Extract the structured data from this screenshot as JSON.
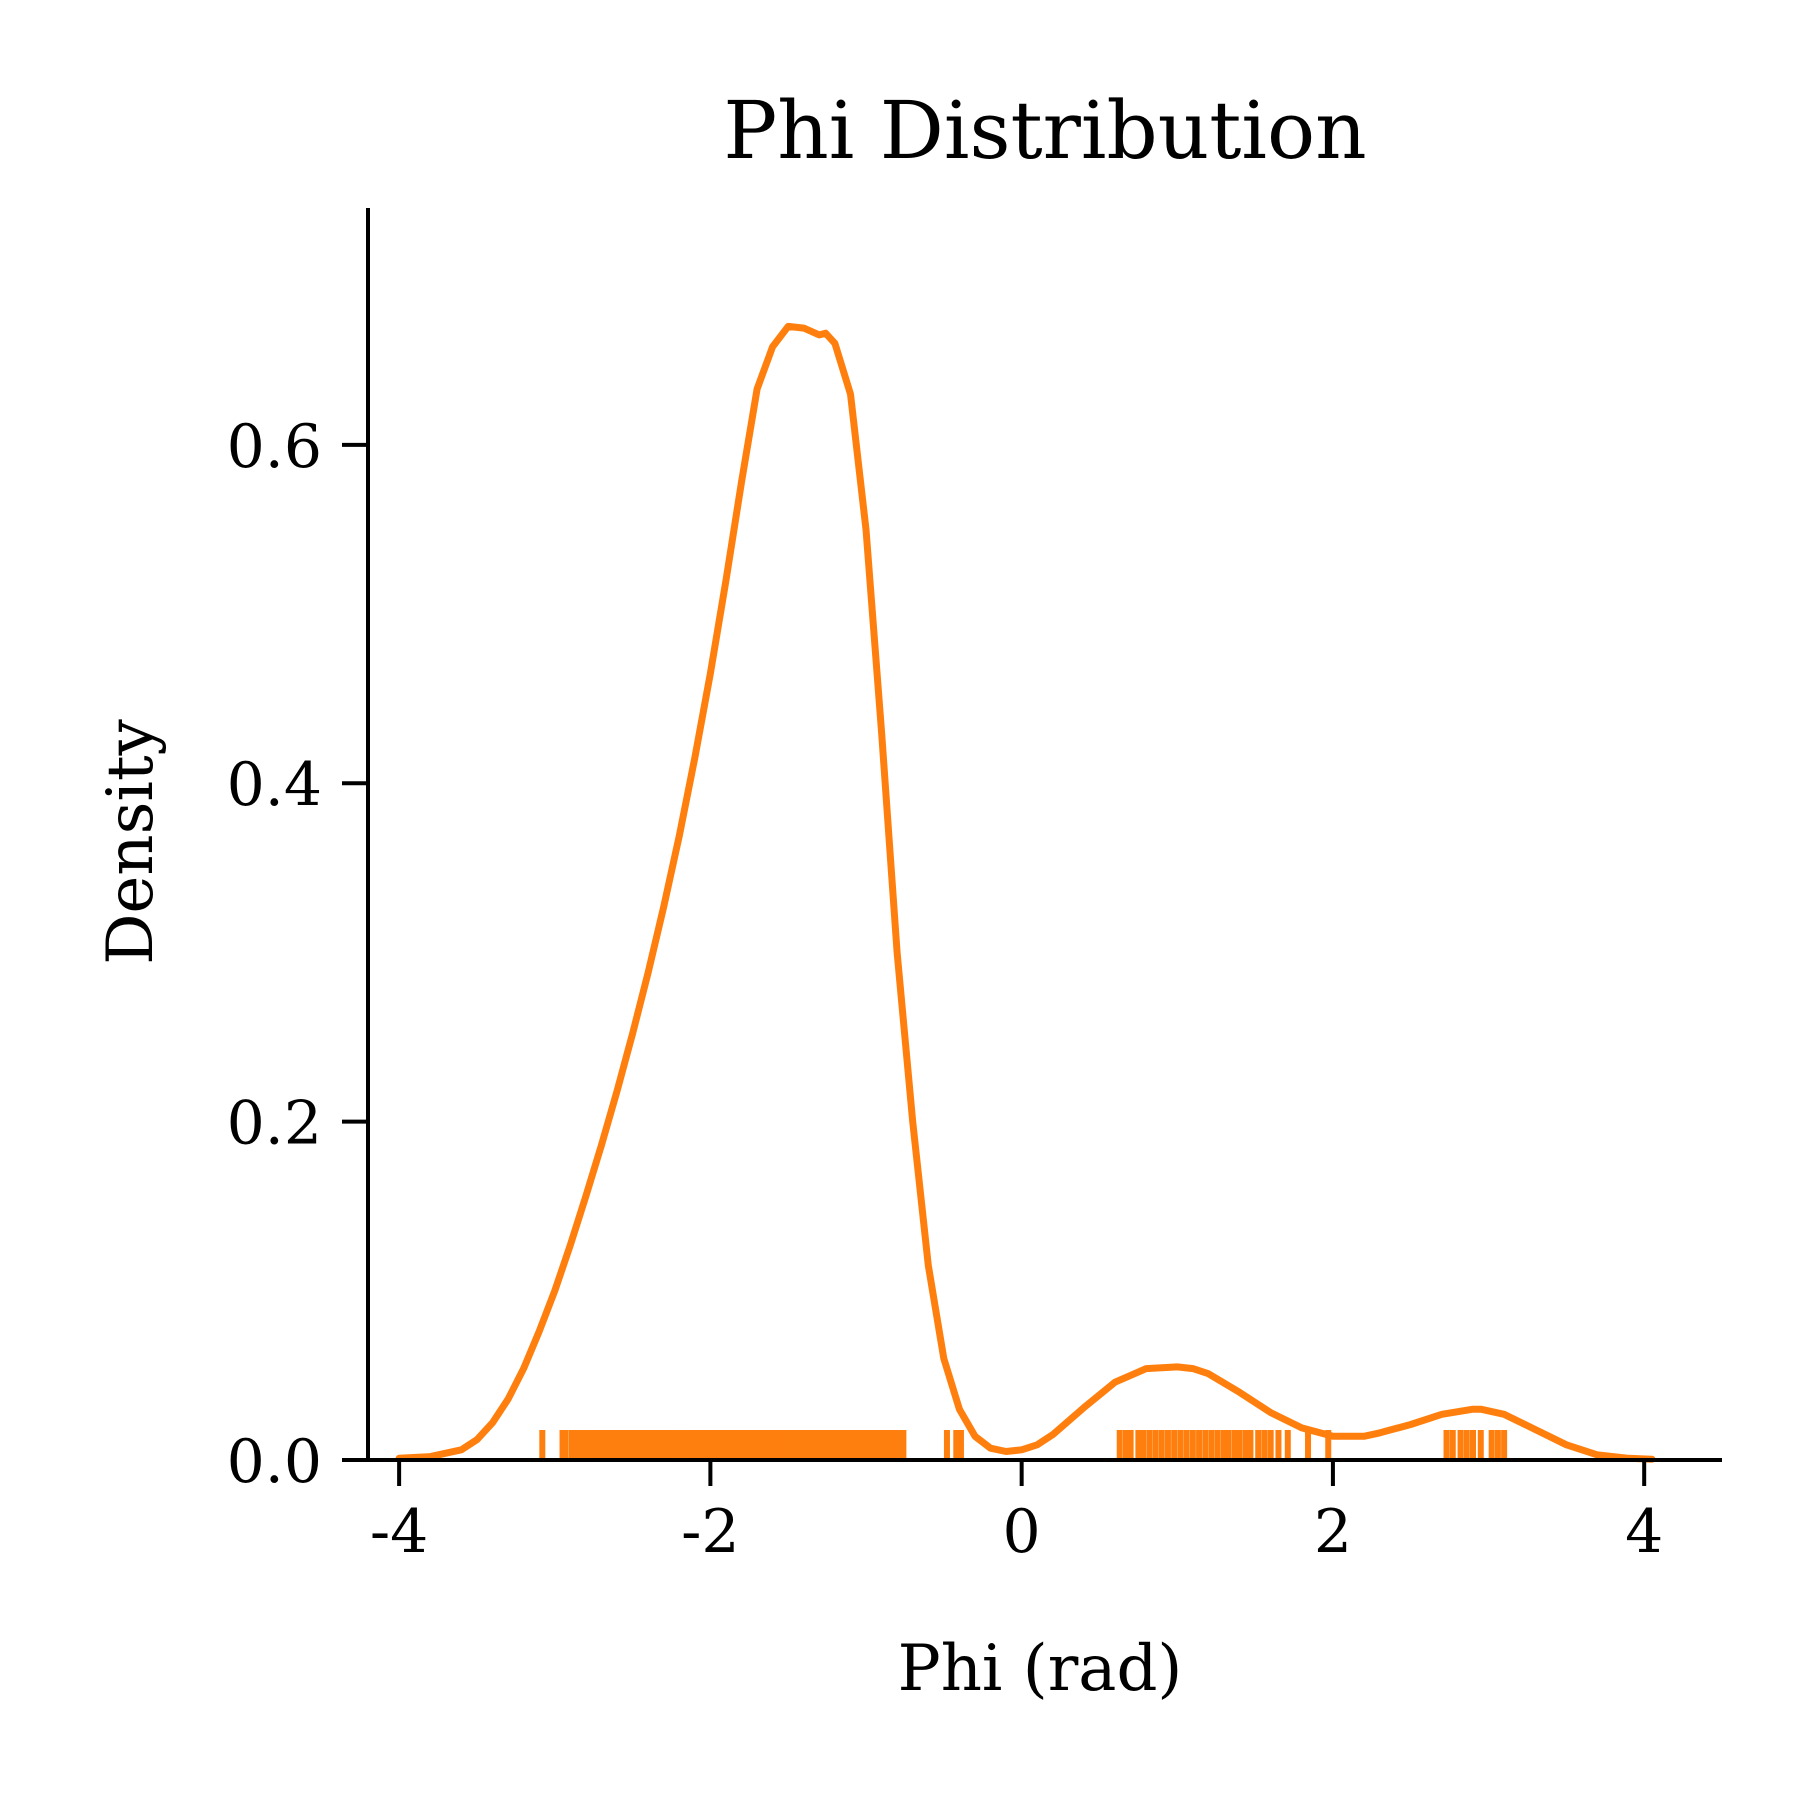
{
  "chart_data": {
    "type": "line",
    "title": "Phi Distribution",
    "xlabel": "Phi (rad)",
    "ylabel": "Density",
    "xlim": [
      -4.2,
      4.5
    ],
    "ylim": [
      0,
      0.74
    ],
    "xticks": [
      -4,
      -2,
      0,
      2,
      4
    ],
    "xtick_labels": [
      "-4",
      "-2",
      "0",
      "2",
      "4"
    ],
    "yticks": [
      0.0,
      0.2,
      0.4,
      0.6
    ],
    "ytick_labels": [
      "0.0",
      "0.2",
      "0.4",
      "0.6"
    ],
    "grid": false,
    "line_color": "#ff7f0e",
    "axis_color": "#000000",
    "series": [
      {
        "kind": "kde",
        "x": [
          -4.0,
          -3.8,
          -3.6,
          -3.5,
          -3.4,
          -3.3,
          -3.2,
          -3.1,
          -3.0,
          -2.9,
          -2.8,
          -2.7,
          -2.6,
          -2.5,
          -2.4,
          -2.3,
          -2.2,
          -2.1,
          -2.0,
          -1.9,
          -1.8,
          -1.7,
          -1.6,
          -1.5,
          -1.4,
          -1.3,
          -1.26,
          -1.2,
          -1.1,
          -1.0,
          -0.9,
          -0.8,
          -0.7,
          -0.6,
          -0.5,
          -0.4,
          -0.3,
          -0.2,
          -0.1,
          0.0,
          0.1,
          0.2,
          0.4,
          0.6,
          0.8,
          1.0,
          1.1,
          1.2,
          1.4,
          1.6,
          1.8,
          2.0,
          2.2,
          2.3,
          2.5,
          2.7,
          2.9,
          2.95,
          3.1,
          3.3,
          3.5,
          3.7,
          3.9,
          4.05
        ],
        "y": [
          0.001,
          0.002,
          0.006,
          0.012,
          0.022,
          0.036,
          0.054,
          0.076,
          0.1,
          0.127,
          0.156,
          0.186,
          0.218,
          0.252,
          0.288,
          0.327,
          0.369,
          0.415,
          0.465,
          0.52,
          0.578,
          0.633,
          0.658,
          0.67,
          0.669,
          0.665,
          0.666,
          0.66,
          0.63,
          0.55,
          0.43,
          0.3,
          0.2,
          0.115,
          0.06,
          0.03,
          0.014,
          0.007,
          0.005,
          0.006,
          0.009,
          0.015,
          0.031,
          0.046,
          0.054,
          0.055,
          0.054,
          0.051,
          0.04,
          0.028,
          0.019,
          0.014,
          0.014,
          0.016,
          0.021,
          0.027,
          0.03,
          0.03,
          0.027,
          0.018,
          0.009,
          0.003,
          0.001,
          0.0005
        ]
      },
      {
        "kind": "rug",
        "x": [
          -3.08,
          -2.95,
          -2.93,
          -2.89,
          -2.87,
          -2.85,
          -2.82,
          -2.8,
          -2.78,
          -2.76,
          -2.74,
          -2.72,
          -2.7,
          -2.68,
          -2.66,
          -2.64,
          -2.62,
          -2.6,
          -2.58,
          -2.56,
          -2.54,
          -2.52,
          -2.5,
          -2.48,
          -2.46,
          -2.44,
          -2.42,
          -2.4,
          -2.38,
          -2.36,
          -2.34,
          -2.32,
          -2.3,
          -2.28,
          -2.26,
          -2.24,
          -2.22,
          -2.2,
          -2.18,
          -2.16,
          -2.14,
          -2.12,
          -2.1,
          -2.08,
          -2.06,
          -2.04,
          -2.02,
          -2.0,
          -1.98,
          -1.96,
          -1.94,
          -1.92,
          -1.9,
          -1.88,
          -1.86,
          -1.84,
          -1.82,
          -1.8,
          -1.78,
          -1.76,
          -1.74,
          -1.72,
          -1.7,
          -1.68,
          -1.66,
          -1.64,
          -1.62,
          -1.6,
          -1.58,
          -1.56,
          -1.54,
          -1.52,
          -1.5,
          -1.48,
          -1.46,
          -1.44,
          -1.42,
          -1.4,
          -1.38,
          -1.36,
          -1.34,
          -1.32,
          -1.3,
          -1.28,
          -1.26,
          -1.24,
          -1.22,
          -1.2,
          -1.18,
          -1.16,
          -1.14,
          -1.12,
          -1.1,
          -1.08,
          -1.06,
          -1.04,
          -1.02,
          -1.0,
          -0.98,
          -0.96,
          -0.94,
          -0.92,
          -0.9,
          -0.88,
          -0.86,
          -0.84,
          -0.82,
          -0.8,
          -0.78,
          -0.76,
          -0.48,
          -0.42,
          -0.39,
          0.63,
          0.67,
          0.7,
          0.75,
          0.78,
          0.82,
          0.86,
          0.9,
          0.94,
          0.98,
          1.02,
          1.06,
          1.1,
          1.14,
          1.18,
          1.22,
          1.26,
          1.3,
          1.33,
          1.37,
          1.4,
          1.44,
          1.47,
          1.52,
          1.56,
          1.6,
          1.65,
          1.71,
          1.84,
          1.97,
          2.73,
          2.77,
          2.82,
          2.86,
          2.9,
          2.95,
          3.02,
          3.06,
          3.1
        ]
      }
    ]
  }
}
